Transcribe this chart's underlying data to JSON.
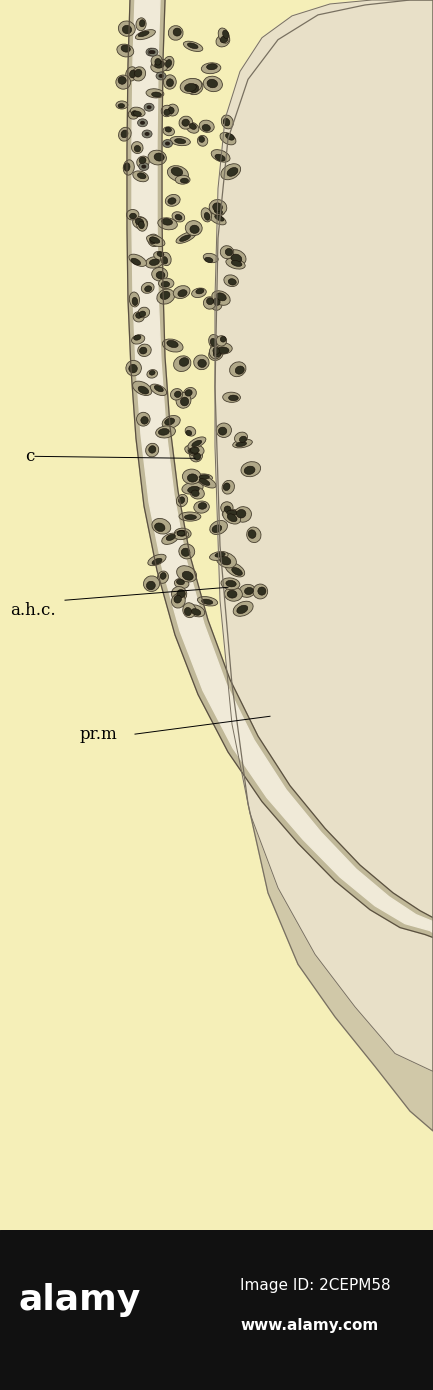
{
  "bg_color": "#f5efb8",
  "tissue_outer_color": "#c8c0a0",
  "tissue_inner_color": "#e8e0c8",
  "tube_wall_color": "#b8b098",
  "tube_lumen_color": "#f0ead8",
  "cell_body_color": "#7a7060",
  "cell_nucleus_color": "#2a2018",
  "label_c": "c",
  "label_ahc": "a.h.c.",
  "label_prm": "pr.m",
  "label_alamy": "alamy",
  "label_imageid": "Image ID: 2CEPM58",
  "label_www": "www.alamy.com",
  "fig_width": 4.33,
  "fig_height": 13.9,
  "dpi": 100
}
